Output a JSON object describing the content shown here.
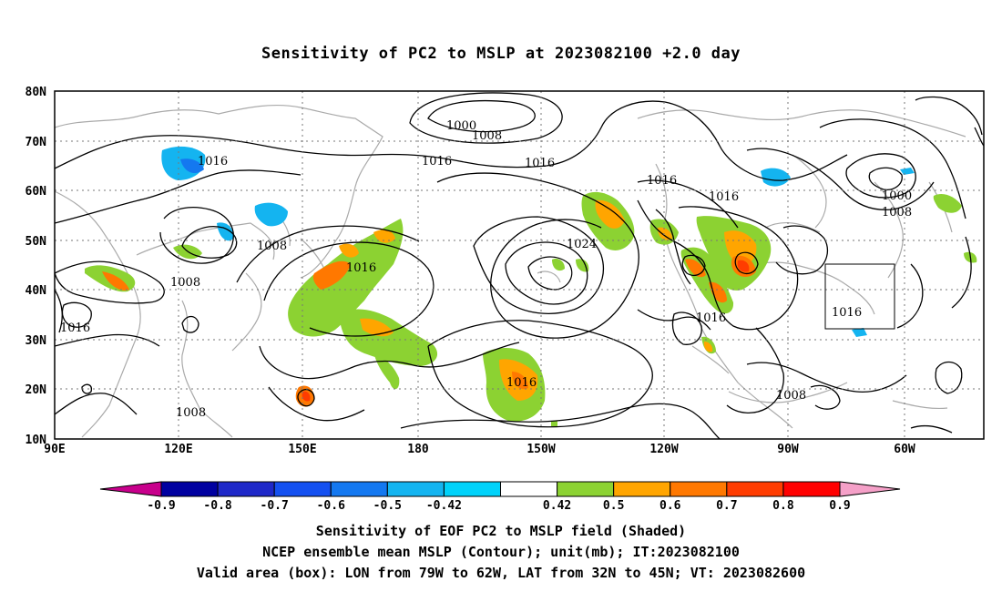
{
  "title": "Sensitivity of PC2 to MSLP at 2023082100 +2.0 day",
  "map": {
    "lat_labels": [
      "80N",
      "70N",
      "60N",
      "50N",
      "40N",
      "30N",
      "20N",
      "10N"
    ],
    "lon_labels": [
      "90E",
      "120E",
      "150E",
      "180",
      "150W",
      "120W",
      "90W",
      "60W"
    ],
    "valid_box": {
      "lon_from": "79W",
      "lon_to": "62W",
      "lat_from": "32N",
      "lat_to": "45N"
    },
    "contour_labels": [
      "1000",
      "1008",
      "1016",
      "1016",
      "1016",
      "1016",
      "1016",
      "1008",
      "1008",
      "1016",
      "1024",
      "1016",
      "1016",
      "1016",
      "1008",
      "1000",
      "1008",
      "1016"
    ]
  },
  "colorbar": {
    "labels": [
      "-0.9",
      "-0.8",
      "-0.7",
      "-0.6",
      "-0.5",
      "-0.42",
      "0.42",
      "0.5",
      "0.6",
      "0.7",
      "0.8",
      "0.9"
    ],
    "colors": [
      "#c8008c",
      "#0000a0",
      "#1e28c8",
      "#1450f0",
      "#1478f0",
      "#14b4f0",
      "#00d2fa",
      "#ffffff",
      "#8cd232",
      "#ffa500",
      "#ff7800",
      "#ff3c00",
      "#ff0000",
      "#f5a0c8"
    ]
  },
  "shading_colors": {
    "green": "#8cd232",
    "orange": "#ffa500",
    "dark_orange": "#ff7800",
    "red": "#ff3c00",
    "cyan": "#14b4f0",
    "blue": "#1478f0"
  },
  "captions": [
    "Sensitivity of EOF PC2 to MSLP field (Shaded)",
    "NCEP ensemble mean MSLP (Contour); unit(mb); IT:2023082100",
    "Valid area (box): LON from 79W to 62W, LAT from 32N to 45N; VT: 2023082600"
  ]
}
